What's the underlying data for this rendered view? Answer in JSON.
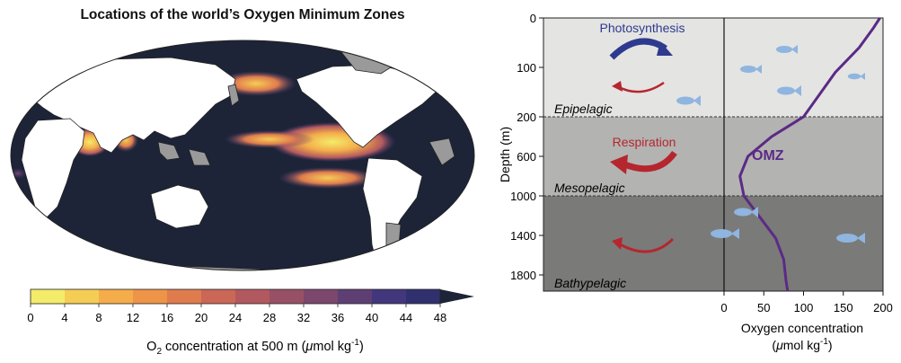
{
  "map": {
    "title": "Locations of the world’s Oxygen Minimum Zones",
    "colorbar": {
      "ticks": [
        "0",
        "4",
        "8",
        "12",
        "16",
        "20",
        "24",
        "28",
        "32",
        "36",
        "40",
        "44",
        "48"
      ],
      "label_o": "O",
      "label_sub": "2",
      "label_rest": " concentration at 500 m (",
      "label_mu": "μ",
      "label_unit": "mol kg",
      "label_sup": "-1",
      "label_close": ")",
      "colors": [
        "#f3ec6a",
        "#f5cd55",
        "#f4ad4a",
        "#ed9449",
        "#df7c4e",
        "#ca6757",
        "#b2595f",
        "#985066",
        "#7c476d",
        "#5e3f74",
        "#42377c",
        "#30306f",
        "#1d2438"
      ]
    }
  },
  "diagram": {
    "ylabel": "Depth (m)",
    "yticks": [
      "0",
      "100",
      "200",
      "600",
      "1000",
      "1400",
      "1800"
    ],
    "xticks": [
      "0",
      "50",
      "100",
      "150",
      "200"
    ],
    "xlabel_line1": "Oxygen concentration",
    "xlabel_line2_mu": "μ",
    "xlabel_line2_rest": "mol kg",
    "xlabel_sup": "-1",
    "zones": [
      "Epipelagic",
      "Mesopelagic",
      "Bathypelagic"
    ],
    "photosynthesis": "Photosynthesis",
    "respiration": "Respiration",
    "omz": "OMZ",
    "colors": {
      "blue": "#2e3a8f",
      "red": "#b5262f",
      "purple": "#5b2a86",
      "fish": "#8fb5e0"
    }
  },
  "chart_data": {
    "type": "line",
    "x": [
      196,
      188,
      170,
      140,
      100,
      60,
      30,
      20,
      25,
      45,
      65,
      75,
      78,
      80
    ],
    "y": [
      0,
      20,
      60,
      110,
      200,
      400,
      600,
      800,
      1000,
      1200,
      1400,
      1600,
      1800,
      1900
    ],
    "xlabel": "Oxygen concentration (μmol kg-1)",
    "ylabel": "Depth (m)",
    "xlim": [
      0,
      200
    ]
  }
}
